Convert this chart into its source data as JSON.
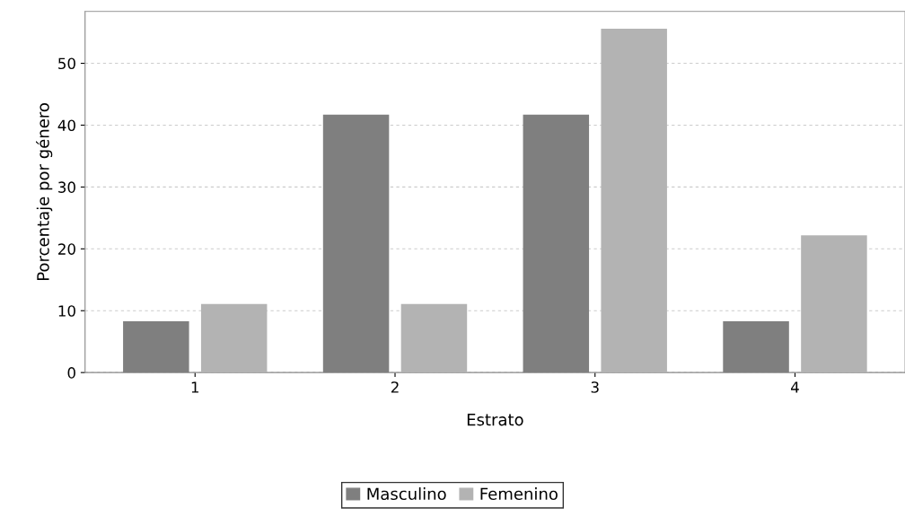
{
  "chart_data": {
    "type": "bar",
    "xlabel": "Estrato",
    "ylabel": "Porcentaje por género",
    "categories": [
      "1",
      "2",
      "3",
      "4"
    ],
    "series": [
      {
        "name": "Masculino",
        "color": "#7f7f7f",
        "values": [
          8.3,
          41.7,
          41.7,
          8.3
        ]
      },
      {
        "name": "Femenino",
        "color": "#b3b3b3",
        "values": [
          11.1,
          11.1,
          55.6,
          22.2
        ]
      }
    ],
    "ylim": [
      0,
      58.4
    ],
    "yticks": [
      0,
      10,
      20,
      30,
      40,
      50
    ],
    "grid": "y",
    "legend": "bottom"
  }
}
